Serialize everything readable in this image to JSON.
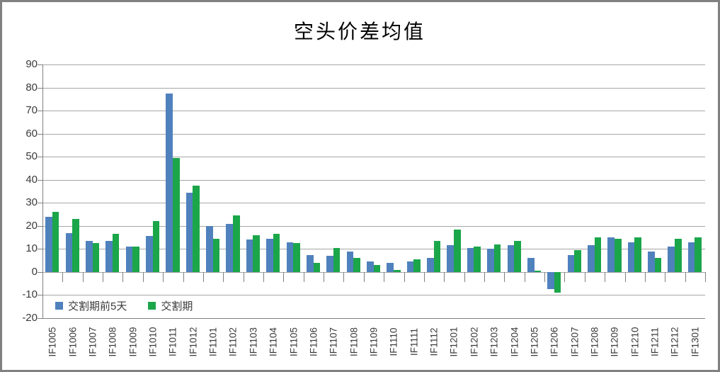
{
  "title": "空头价差均值",
  "colors": {
    "series1": "#4F81BD",
    "series2": "#1BA64A",
    "gridline": "#A6A6A6",
    "axis": "#808080",
    "label_text": "#3a3a3a",
    "title_text": "#000000"
  },
  "chart_data": {
    "type": "bar",
    "title": "空头价差均值",
    "categories": [
      "IF1005",
      "IF1006",
      "IF1007",
      "IF1008",
      "IF1009",
      "IF1010",
      "IF1011",
      "IF1012",
      "IF1101",
      "IF1102",
      "IF1103",
      "IF1104",
      "IF1105",
      "IF1106",
      "IF1107",
      "IF1108",
      "IF1109",
      "IF1110",
      "IF1111",
      "IF1112",
      "IF1201",
      "IF1202",
      "IF1203",
      "IF1204",
      "IF1205",
      "IF1206",
      "IF1207",
      "IF1208",
      "IF1209",
      "IF1210",
      "IF1211",
      "IF1212",
      "IF1301"
    ],
    "series": [
      {
        "name": "交割期前5天",
        "color": "#4F81BD",
        "values": [
          24,
          17,
          13.5,
          13.5,
          11,
          15.5,
          77.5,
          34.5,
          20,
          21,
          14,
          14.5,
          13,
          7.5,
          7,
          9,
          4.5,
          4,
          4.5,
          6,
          11.5,
          10.5,
          10,
          11.5,
          6,
          -7.5,
          7.5,
          11.5,
          15,
          13,
          9,
          11,
          13
        ]
      },
      {
        "name": "交割期",
        "color": "#1BA64A",
        "values": [
          26,
          23,
          12.5,
          16.5,
          11,
          22,
          49.5,
          37.5,
          14.5,
          24.5,
          16,
          16.5,
          12.5,
          4,
          10.5,
          6,
          3,
          1,
          5.5,
          13.5,
          18.5,
          11,
          12,
          13.5,
          0.5,
          -9,
          9.5,
          15,
          14.5,
          15,
          6,
          14.5,
          15
        ]
      }
    ],
    "xlabel": "",
    "ylabel": "",
    "ylim": [
      -20,
      90
    ],
    "yticks": [
      90,
      80,
      70,
      60,
      50,
      40,
      30,
      20,
      10,
      0,
      -10,
      -20
    ],
    "grid": true,
    "legend_position": "inside-bottom-left"
  }
}
